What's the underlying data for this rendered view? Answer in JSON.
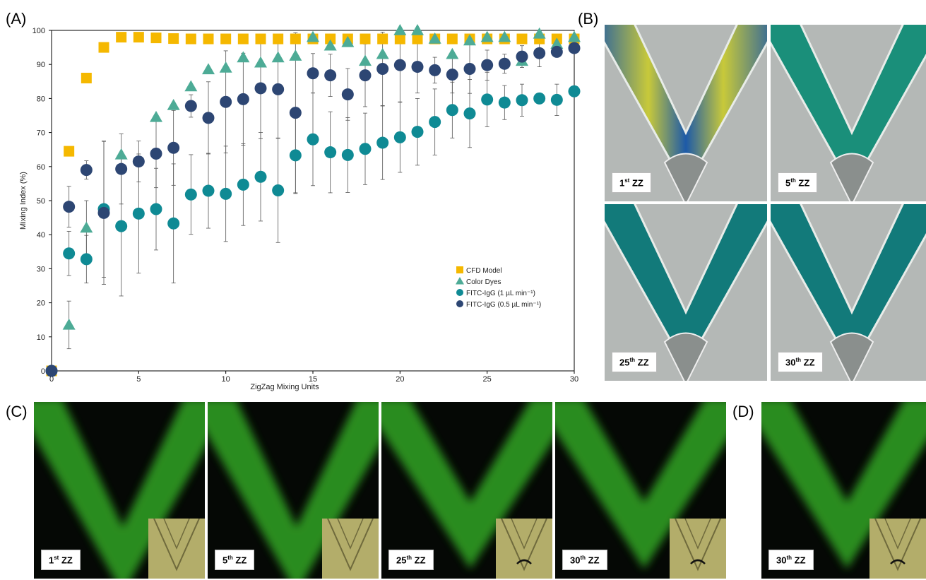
{
  "panel_letters": {
    "a": "(A)",
    "b": "(B)",
    "c": "(C)",
    "d": "(D)"
  },
  "chart_data": {
    "type": "scatter",
    "xlabel": "ZigZag Mixing Units",
    "ylabel": "Mixing Index (%)",
    "xlim": [
      0,
      30
    ],
    "ylim": [
      0,
      100
    ],
    "xticks": [
      0,
      5,
      10,
      15,
      20,
      25,
      30
    ],
    "yticks": [
      0,
      10,
      20,
      30,
      40,
      50,
      60,
      70,
      80,
      90,
      100
    ],
    "grid": false,
    "legend_position": "bottom-right",
    "series": [
      {
        "name": "CFD Model",
        "marker": "square",
        "color": "#f5b800",
        "x": [
          0,
          1,
          2,
          3,
          4,
          5,
          6,
          7,
          8,
          9,
          10,
          11,
          12,
          13,
          14,
          15,
          16,
          17,
          18,
          19,
          20,
          21,
          22,
          23,
          24,
          25,
          26,
          27,
          28,
          29,
          30
        ],
        "y": [
          0,
          64.5,
          86,
          95,
          98,
          98,
          97.8,
          97.6,
          97.5,
          97.5,
          97.5,
          97.5,
          97.5,
          97.5,
          97.5,
          97.5,
          97.5,
          97.5,
          97.5,
          97.5,
          97.5,
          97.5,
          97.5,
          97.5,
          97.5,
          97.5,
          97.5,
          97.5,
          97.5,
          97.5,
          97.5
        ],
        "err": []
      },
      {
        "name": "Color Dyes",
        "marker": "triangle",
        "color": "#4dab96",
        "x": [
          1,
          2,
          4,
          6,
          7,
          8,
          9,
          10,
          11,
          12,
          13,
          14,
          15,
          16,
          17,
          18,
          19,
          20,
          21,
          22,
          23,
          24,
          25,
          26,
          27,
          28,
          29,
          30
        ],
        "y": [
          13.5,
          42,
          63.5,
          74.5,
          78,
          83.5,
          88.5,
          89,
          92,
          90.5,
          92,
          92.5,
          98,
          95.5,
          96.5,
          91,
          93,
          100,
          100,
          97.5,
          93,
          97,
          98,
          98,
          91,
          99,
          96,
          98
        ],
        "err": [
          7,
          8,
          0,
          0,
          0,
          0,
          0,
          0,
          0,
          0,
          0,
          0,
          0,
          0,
          0,
          0,
          0,
          0,
          0,
          0,
          0,
          0,
          0,
          0,
          0,
          0,
          0,
          0
        ]
      },
      {
        "name": "FITC-IgG (1 µL min⁻¹)",
        "marker": "circle",
        "color": "#0f8a94",
        "x": [
          0,
          1,
          2,
          3,
          4,
          5,
          6,
          7,
          8,
          9,
          10,
          11,
          12,
          13,
          14,
          15,
          16,
          17,
          18,
          19,
          20,
          21,
          22,
          23,
          24,
          25,
          26,
          27,
          28,
          29,
          30
        ],
        "y": [
          0,
          34.5,
          32.8,
          47.5,
          42.5,
          46.2,
          47.5,
          43.3,
          51.8,
          52.9,
          52,
          54.7,
          57,
          53,
          63.3,
          68,
          64.2,
          63.4,
          65.2,
          67,
          68.6,
          70.2,
          73.1,
          76.6,
          75.6,
          79.7,
          78.8,
          79.5,
          80,
          79.6,
          82.1
        ],
        "err": [
          0,
          6.5,
          7,
          20,
          20.5,
          17.5,
          12,
          17.5,
          11.7,
          11,
          14,
          12,
          13,
          15.3,
          11.2,
          13.6,
          11.9,
          11,
          10.5,
          10.8,
          10.3,
          9.8,
          9.7,
          8.2,
          10,
          8,
          5,
          4.7,
          0,
          4.6,
          0
        ]
      },
      {
        "name": "FITC-IgG (0.5 µL min⁻¹)",
        "marker": "circle",
        "color": "#2d4673",
        "x": [
          0,
          1,
          2,
          3,
          4,
          5,
          6,
          7,
          8,
          9,
          10,
          11,
          12,
          13,
          14,
          15,
          16,
          17,
          18,
          19,
          20,
          21,
          22,
          23,
          24,
          25,
          26,
          27,
          28,
          29,
          30
        ],
        "y": [
          0,
          48.2,
          59,
          46.4,
          59.3,
          61.5,
          63.8,
          65.5,
          77.8,
          74.3,
          79,
          79.8,
          83,
          82.7,
          75.8,
          87.4,
          86.8,
          81.2,
          86.8,
          88.7,
          89.8,
          89.3,
          88.3,
          87,
          88.7,
          89.8,
          90.2,
          92.3,
          93.3,
          93.7,
          94.8
        ],
        "err": [
          0,
          6,
          2.7,
          21,
          10.3,
          6,
          10,
          11,
          3.3,
          10.6,
          15,
          13.5,
          14.8,
          14.3,
          23.5,
          5.8,
          6.2,
          7.6,
          9.2,
          10.8,
          10.8,
          7.7,
          3.8,
          5.4,
          7.2,
          4.4,
          2.8,
          3.2,
          4,
          0,
          0
        ]
      }
    ]
  },
  "panels": {
    "b": [
      {
        "label": "1st ZZ",
        "num": "1",
        "suffix": "st"
      },
      {
        "label": "5th ZZ",
        "num": "5",
        "suffix": "th"
      },
      {
        "label": "25th ZZ",
        "num": "25",
        "suffix": "th"
      },
      {
        "label": "30th ZZ",
        "num": "30",
        "suffix": "th"
      }
    ],
    "c": [
      {
        "label": "1st ZZ",
        "num": "1",
        "suffix": "st"
      },
      {
        "label": "5th ZZ",
        "num": "5",
        "suffix": "th"
      },
      {
        "label": "25th ZZ",
        "num": "25",
        "suffix": "th"
      },
      {
        "label": "30th ZZ",
        "num": "30",
        "suffix": "th"
      }
    ],
    "d": [
      {
        "label": "30th ZZ",
        "num": "30",
        "suffix": "th"
      }
    ]
  },
  "colors": {
    "microscope_gray": "#b4b8b6",
    "fluorescence_green": "#2f9b22",
    "dark_background": "#050805",
    "dye_blue": "#1d5aa8",
    "dye_yellow": "#c8c93a",
    "dye_teal": "#127a7a"
  }
}
